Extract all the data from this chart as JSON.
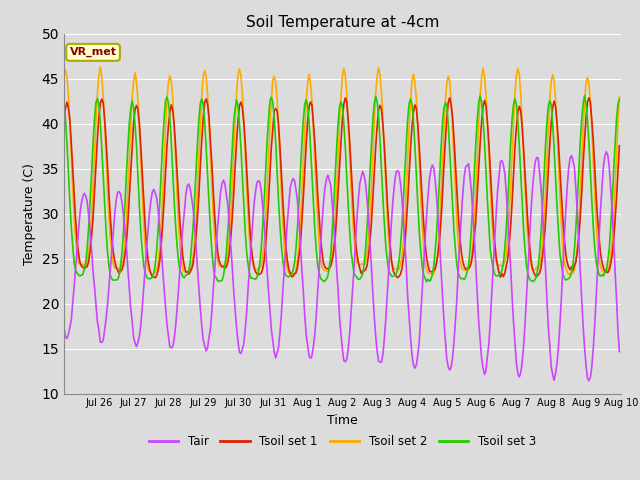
{
  "title": "Soil Temperature at -4cm",
  "xlabel": "Time",
  "ylabel": "Temperature (C)",
  "ylim": [
    10,
    50
  ],
  "yticks": [
    10,
    15,
    20,
    25,
    30,
    35,
    40,
    45,
    50
  ],
  "background_color": "#dcdcdc",
  "plot_bg_color": "#dcdcdc",
  "grid_color": "#ffffff",
  "line_colors": {
    "Tair": "#cc44ff",
    "Tsoil1": "#dd2200",
    "Tsoil2": "#ffaa00",
    "Tsoil3": "#22cc00"
  },
  "line_widths": {
    "Tair": 1.2,
    "Tsoil1": 1.2,
    "Tsoil2": 1.2,
    "Tsoil3": 1.2
  },
  "legend_labels": [
    "Tair",
    "Tsoil set 1",
    "Tsoil set 2",
    "Tsoil set 3"
  ],
  "xtick_labels": [
    "Jul 26",
    "Jul 27",
    "Jul 28",
    "Jul 29",
    "Jul 30",
    "Jul 31",
    "Aug 1",
    "Aug 2",
    "Aug 3",
    "Aug 4",
    "Aug 5",
    "Aug 6",
    "Aug 7",
    "Aug 8",
    "Aug 9",
    "Aug 10"
  ],
  "annotation_text": "VR_met",
  "annotation_color": "#8b0000",
  "annotation_bg": "#ffffcc",
  "annotation_border": "#aaaa00"
}
